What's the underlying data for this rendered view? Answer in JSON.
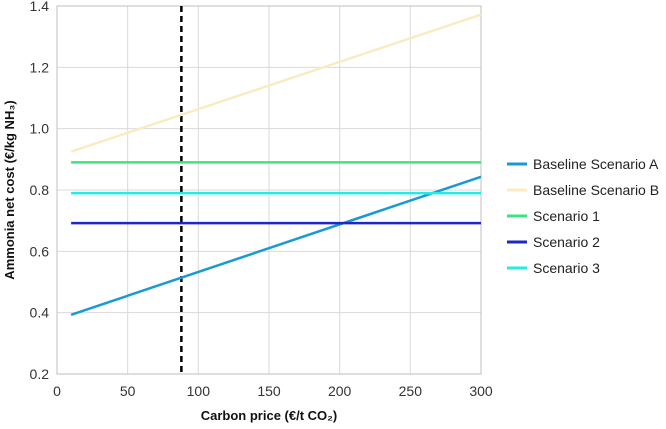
{
  "chart_data": {
    "type": "line",
    "xlabel": "Carbon price (€/t CO₂)",
    "ylabel": "Ammonia net cost (€/kg NH₃)",
    "xlim": [
      0,
      300
    ],
    "ylim": [
      0.2,
      1.4
    ],
    "xticks": [
      0,
      50,
      100,
      150,
      200,
      250,
      300
    ],
    "yticks": [
      0.2,
      0.4,
      0.6,
      0.8,
      1.0,
      1.2,
      1.4
    ],
    "xtick_labels": [
      "0",
      "50",
      "100",
      "150",
      "200",
      "250",
      "300"
    ],
    "ytick_labels": [
      "0.2",
      "0.4",
      "0.6",
      "0.8",
      "1.0",
      "1.2",
      "1.4"
    ],
    "grid": true,
    "legend_position": "right",
    "vertical_reference_line": {
      "x": 88,
      "style": "dashed",
      "color": "#000000"
    },
    "series": [
      {
        "name": "Baseline Scenario A",
        "color": "#1a9ad2",
        "x": [
          10,
          300
        ],
        "y": [
          0.393,
          0.843
        ]
      },
      {
        "name": "Baseline Scenario B",
        "color": "#faecc0",
        "x": [
          10,
          300
        ],
        "y": [
          0.925,
          1.372
        ]
      },
      {
        "name": "Scenario 1",
        "color": "#3ae67c",
        "x": [
          10,
          300
        ],
        "y": [
          0.89,
          0.89
        ]
      },
      {
        "name": "Scenario 2",
        "color": "#1d28c4",
        "x": [
          10,
          300
        ],
        "y": [
          0.692,
          0.692
        ]
      },
      {
        "name": "Scenario 3",
        "color": "#22ece6",
        "x": [
          10,
          300
        ],
        "y": [
          0.79,
          0.79
        ]
      }
    ]
  }
}
